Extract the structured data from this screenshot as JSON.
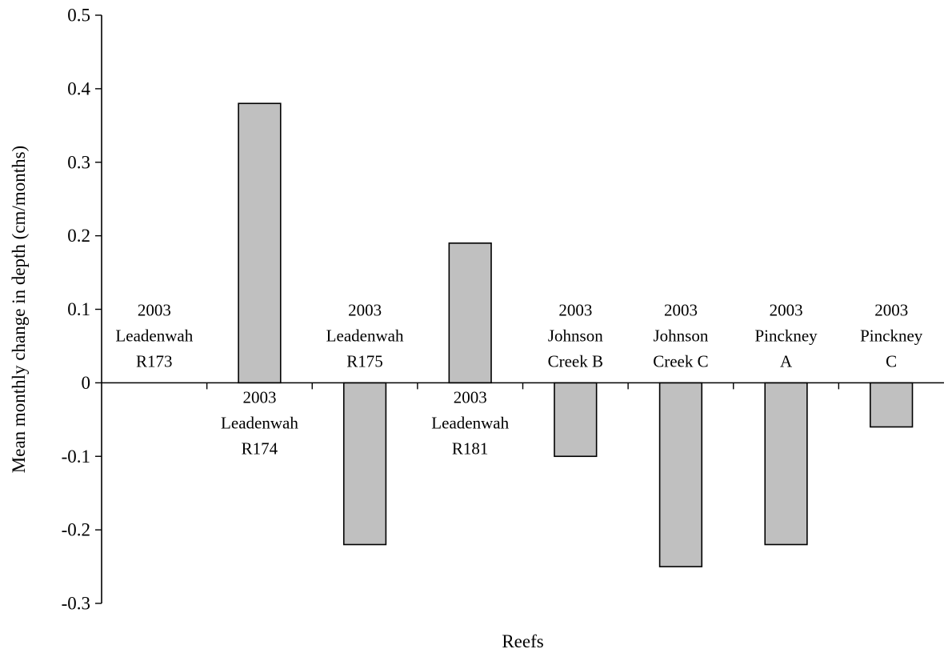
{
  "chart_data": {
    "type": "bar",
    "categories": [
      [
        "2003",
        "Leadenwah",
        "R173"
      ],
      [
        "2003",
        "Leadenwah",
        "R174"
      ],
      [
        "2003",
        "Leadenwah",
        "R175"
      ],
      [
        "2003",
        "Leadenwah",
        "R181"
      ],
      [
        "2003",
        "Johnson",
        "Creek B"
      ],
      [
        "2003",
        "Johnson",
        "Creek C"
      ],
      [
        "2003",
        "Pinckney",
        "A"
      ],
      [
        "2003",
        "Pinckney",
        "C"
      ]
    ],
    "values": [
      0,
      0.38,
      -0.22,
      0.19,
      -0.1,
      -0.25,
      -0.22,
      -0.06
    ],
    "title": "",
    "xlabel": "Reefs",
    "ylabel": "Mean monthly change in depth (cm/months)",
    "ylim": [
      -0.3,
      0.5
    ],
    "yticks": [
      -0.3,
      -0.2,
      -0.1,
      0,
      0.1,
      0.2,
      0.3,
      0.4,
      0.5
    ],
    "ytick_labels": [
      "-0.3",
      "-0.2",
      "-0.1",
      "0",
      "0.1",
      "0.2",
      "0.3",
      "0.4",
      "0.5"
    ],
    "grid": false,
    "legend": "none",
    "colors": {
      "bar_fill": "#c0c0c0",
      "bar_stroke": "#000000"
    }
  }
}
